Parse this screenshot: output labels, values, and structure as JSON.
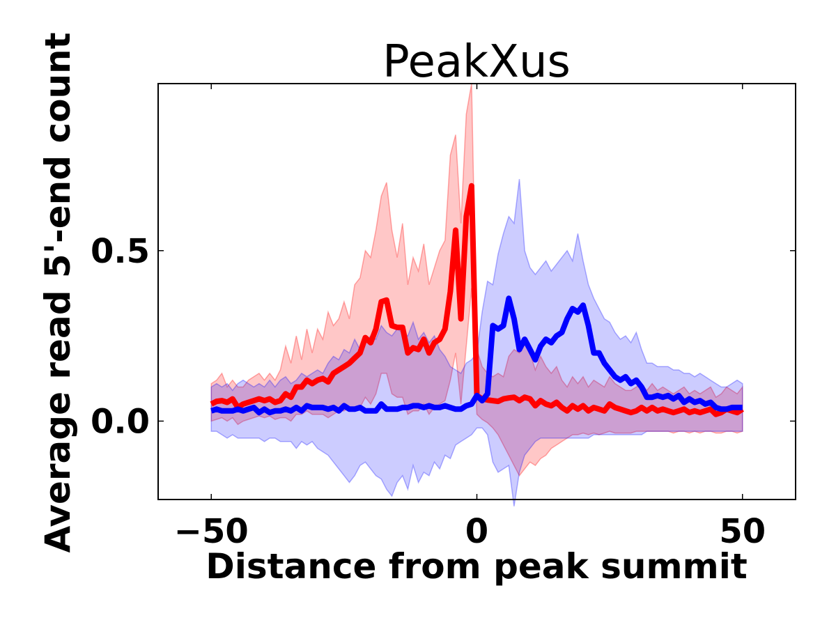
{
  "chart_data": {
    "type": "line",
    "title": "PeakXus",
    "xlabel": "Distance from peak summit",
    "ylabel": "Average read 5'-end count",
    "xlim": [
      -60,
      60
    ],
    "ylim": [
      -0.23,
      0.99
    ],
    "xticks": [
      -50,
      0,
      50
    ],
    "xtick_labels": [
      "−50",
      "0",
      "50"
    ],
    "yticks": [
      0.0,
      0.5
    ],
    "ytick_labels": [
      "0.0",
      "0.5"
    ],
    "grid": false,
    "legend": "none",
    "series": [
      {
        "color": "#ff0000",
        "band_color": "#ff0000",
        "band_opacity": 0.22,
        "x": [
          -50,
          -49,
          -48,
          -47,
          -46,
          -45,
          -44,
          -43,
          -42,
          -41,
          -40,
          -39,
          -38,
          -37,
          -36,
          -35,
          -34,
          -33,
          -32,
          -31,
          -30,
          -29,
          -28,
          -27,
          -26,
          -25,
          -24,
          -23,
          -22,
          -21,
          -20,
          -19,
          -18,
          -17,
          -16,
          -15,
          -14,
          -13,
          -12,
          -11,
          -10,
          -9,
          -8,
          -7,
          -6,
          -5,
          -4,
          -3,
          -2,
          -1,
          0,
          1,
          2,
          3,
          4,
          5,
          6,
          7,
          8,
          9,
          10,
          11,
          12,
          13,
          14,
          15,
          16,
          17,
          18,
          19,
          20,
          21,
          22,
          23,
          24,
          25,
          26,
          27,
          28,
          29,
          30,
          31,
          32,
          33,
          34,
          35,
          36,
          37,
          38,
          39,
          40,
          41,
          42,
          43,
          44,
          45,
          46,
          47,
          48,
          49,
          50
        ],
        "y": [
          0.05,
          0.058,
          0.06,
          0.055,
          0.065,
          0.04,
          0.05,
          0.055,
          0.06,
          0.065,
          0.06,
          0.065,
          0.055,
          0.06,
          0.08,
          0.07,
          0.1,
          0.1,
          0.12,
          0.11,
          0.12,
          0.125,
          0.115,
          0.14,
          0.15,
          0.16,
          0.17,
          0.185,
          0.2,
          0.245,
          0.23,
          0.27,
          0.35,
          0.355,
          0.28,
          0.275,
          0.275,
          0.2,
          0.215,
          0.21,
          0.24,
          0.2,
          0.23,
          0.24,
          0.27,
          0.38,
          0.56,
          0.3,
          0.6,
          0.69,
          0.075,
          0.065,
          0.062,
          0.06,
          0.058,
          0.065,
          0.068,
          0.07,
          0.06,
          0.07,
          0.065,
          0.045,
          0.06,
          0.05,
          0.045,
          0.055,
          0.04,
          0.03,
          0.045,
          0.035,
          0.045,
          0.03,
          0.04,
          0.035,
          0.03,
          0.05,
          0.04,
          0.035,
          0.03,
          0.025,
          0.03,
          0.04,
          0.03,
          0.04,
          0.03,
          0.035,
          0.03,
          0.025,
          0.03,
          0.035,
          0.025,
          0.03,
          0.025,
          0.03,
          0.035,
          0.02,
          0.025,
          0.035,
          0.03,
          0.025,
          0.035
        ],
        "lower": [
          0.0,
          0.005,
          0.01,
          0.0,
          0.01,
          -0.01,
          0.0,
          0.005,
          0.01,
          0.015,
          0.01,
          0.015,
          0.005,
          0.01,
          0.01,
          0.0,
          0.02,
          0.02,
          0.03,
          0.02,
          0.02,
          0.02,
          0.01,
          0.02,
          0.03,
          0.03,
          0.04,
          0.04,
          0.04,
          0.07,
          0.05,
          0.08,
          0.14,
          0.14,
          0.08,
          0.07,
          0.07,
          0.02,
          0.03,
          0.03,
          0.05,
          0.02,
          0.04,
          0.05,
          0.06,
          0.12,
          0.2,
          0.05,
          0.22,
          0.39,
          0.02,
          0.005,
          -0.005,
          -0.02,
          -0.04,
          -0.07,
          -0.1,
          -0.13,
          -0.16,
          -0.14,
          -0.12,
          -0.13,
          -0.11,
          -0.1,
          -0.08,
          -0.07,
          -0.06,
          -0.05,
          -0.04,
          -0.04,
          -0.035,
          -0.04,
          -0.035,
          -0.04,
          -0.035,
          -0.03,
          -0.035,
          -0.035,
          -0.035,
          -0.035,
          -0.03,
          -0.03,
          -0.03,
          -0.03,
          -0.03,
          -0.03,
          -0.03,
          -0.035,
          -0.03,
          -0.03,
          -0.035,
          -0.03,
          -0.035,
          -0.03,
          -0.03,
          -0.035,
          -0.035,
          -0.03,
          -0.03,
          -0.035,
          -0.03
        ],
        "upper": [
          0.11,
          0.12,
          0.14,
          0.1,
          0.12,
          0.1,
          0.1,
          0.12,
          0.13,
          0.14,
          0.12,
          0.14,
          0.12,
          0.15,
          0.22,
          0.17,
          0.25,
          0.18,
          0.27,
          0.2,
          0.27,
          0.24,
          0.32,
          0.28,
          0.3,
          0.35,
          0.3,
          0.4,
          0.42,
          0.5,
          0.48,
          0.56,
          0.66,
          0.7,
          0.56,
          0.48,
          0.58,
          0.4,
          0.48,
          0.44,
          0.52,
          0.4,
          0.45,
          0.5,
          0.53,
          0.78,
          0.84,
          0.58,
          0.9,
          0.99,
          0.21,
          0.16,
          0.14,
          0.13,
          0.14,
          0.13,
          0.19,
          0.21,
          0.2,
          0.24,
          0.2,
          0.15,
          0.19,
          0.16,
          0.14,
          0.16,
          0.12,
          0.1,
          0.13,
          0.11,
          0.13,
          0.1,
          0.12,
          0.11,
          0.1,
          0.13,
          0.11,
          0.1,
          0.09,
          0.09,
          0.1,
          0.11,
          0.09,
          0.11,
          0.09,
          0.1,
          0.09,
          0.08,
          0.09,
          0.1,
          0.08,
          0.09,
          0.08,
          0.09,
          0.1,
          0.07,
          0.08,
          0.1,
          0.09,
          0.08,
          0.1
        ]
      },
      {
        "color": "#0000ff",
        "band_color": "#0000ff",
        "band_opacity": 0.2,
        "x": [
          -50,
          -49,
          -48,
          -47,
          -46,
          -45,
          -44,
          -43,
          -42,
          -41,
          -40,
          -39,
          -38,
          -37,
          -36,
          -35,
          -34,
          -33,
          -32,
          -31,
          -30,
          -29,
          -28,
          -27,
          -26,
          -25,
          -24,
          -23,
          -22,
          -21,
          -20,
          -19,
          -18,
          -17,
          -16,
          -15,
          -14,
          -13,
          -12,
          -11,
          -10,
          -9,
          -8,
          -7,
          -6,
          -5,
          -4,
          -3,
          -2,
          -1,
          0,
          1,
          2,
          3,
          4,
          5,
          6,
          7,
          8,
          9,
          10,
          11,
          12,
          13,
          14,
          15,
          16,
          17,
          18,
          19,
          20,
          21,
          22,
          23,
          24,
          25,
          26,
          27,
          28,
          29,
          30,
          31,
          32,
          33,
          34,
          35,
          36,
          37,
          38,
          39,
          40,
          41,
          42,
          43,
          44,
          45,
          46,
          47,
          48,
          49,
          50
        ],
        "y": [
          0.03,
          0.035,
          0.03,
          0.03,
          0.03,
          0.035,
          0.03,
          0.035,
          0.04,
          0.025,
          0.035,
          0.025,
          0.03,
          0.03,
          0.035,
          0.03,
          0.04,
          0.03,
          0.045,
          0.04,
          0.04,
          0.04,
          0.035,
          0.04,
          0.03,
          0.045,
          0.035,
          0.035,
          0.04,
          0.03,
          0.03,
          0.03,
          0.05,
          0.035,
          0.035,
          0.035,
          0.04,
          0.04,
          0.045,
          0.045,
          0.04,
          0.045,
          0.04,
          0.04,
          0.045,
          0.04,
          0.035,
          0.035,
          0.045,
          0.05,
          0.075,
          0.06,
          0.08,
          0.28,
          0.27,
          0.28,
          0.36,
          0.3,
          0.21,
          0.24,
          0.21,
          0.18,
          0.22,
          0.24,
          0.23,
          0.25,
          0.26,
          0.3,
          0.33,
          0.32,
          0.34,
          0.28,
          0.2,
          0.2,
          0.17,
          0.15,
          0.13,
          0.12,
          0.13,
          0.11,
          0.12,
          0.1,
          0.07,
          0.07,
          0.075,
          0.07,
          0.075,
          0.065,
          0.075,
          0.055,
          0.065,
          0.055,
          0.06,
          0.05,
          0.055,
          0.04,
          0.035,
          0.035,
          0.04,
          0.04,
          0.04
        ],
        "lower": [
          -0.03,
          -0.03,
          -0.04,
          -0.05,
          -0.04,
          -0.05,
          -0.05,
          -0.05,
          -0.05,
          -0.05,
          -0.06,
          -0.05,
          -0.05,
          -0.06,
          -0.06,
          -0.06,
          -0.08,
          -0.06,
          -0.07,
          -0.06,
          -0.08,
          -0.09,
          -0.1,
          -0.12,
          -0.14,
          -0.16,
          -0.18,
          -0.16,
          -0.13,
          -0.12,
          -0.14,
          -0.16,
          -0.17,
          -0.2,
          -0.22,
          -0.18,
          -0.16,
          -0.2,
          -0.13,
          -0.18,
          -0.15,
          -0.16,
          -0.12,
          -0.14,
          -0.1,
          -0.11,
          -0.07,
          -0.06,
          -0.05,
          -0.04,
          -0.02,
          -0.02,
          -0.04,
          -0.12,
          -0.15,
          -0.14,
          -0.13,
          -0.25,
          -0.15,
          -0.1,
          -0.08,
          -0.06,
          -0.05,
          -0.05,
          -0.05,
          -0.05,
          -0.05,
          -0.05,
          -0.05,
          -0.05,
          -0.05,
          -0.05,
          -0.04,
          -0.04,
          -0.04,
          -0.04,
          -0.04,
          -0.04,
          -0.04,
          -0.04,
          -0.04,
          -0.04,
          -0.03,
          -0.03,
          -0.03,
          -0.03,
          -0.03,
          -0.03,
          -0.03,
          -0.03,
          -0.03,
          -0.03,
          -0.03,
          -0.03,
          -0.03,
          -0.03,
          -0.03,
          -0.03,
          -0.03,
          -0.03,
          -0.03
        ],
        "upper": [
          0.1,
          0.11,
          0.1,
          0.11,
          0.09,
          0.11,
          0.12,
          0.11,
          0.1,
          0.11,
          0.1,
          0.12,
          0.1,
          0.12,
          0.13,
          0.11,
          0.12,
          0.14,
          0.13,
          0.14,
          0.15,
          0.14,
          0.17,
          0.19,
          0.18,
          0.21,
          0.2,
          0.24,
          0.21,
          0.23,
          0.25,
          0.24,
          0.28,
          0.26,
          0.25,
          0.27,
          0.26,
          0.25,
          0.29,
          0.24,
          0.26,
          0.23,
          0.25,
          0.21,
          0.19,
          0.16,
          0.15,
          0.14,
          0.17,
          0.18,
          0.2,
          0.32,
          0.41,
          0.4,
          0.49,
          0.55,
          0.6,
          0.58,
          0.71,
          0.5,
          0.45,
          0.43,
          0.45,
          0.47,
          0.44,
          0.46,
          0.48,
          0.5,
          0.47,
          0.55,
          0.47,
          0.4,
          0.36,
          0.33,
          0.3,
          0.29,
          0.26,
          0.24,
          0.25,
          0.23,
          0.26,
          0.21,
          0.17,
          0.17,
          0.16,
          0.16,
          0.16,
          0.15,
          0.15,
          0.14,
          0.14,
          0.13,
          0.14,
          0.13,
          0.12,
          0.11,
          0.1,
          0.1,
          0.11,
          0.12,
          0.11
        ]
      }
    ]
  }
}
